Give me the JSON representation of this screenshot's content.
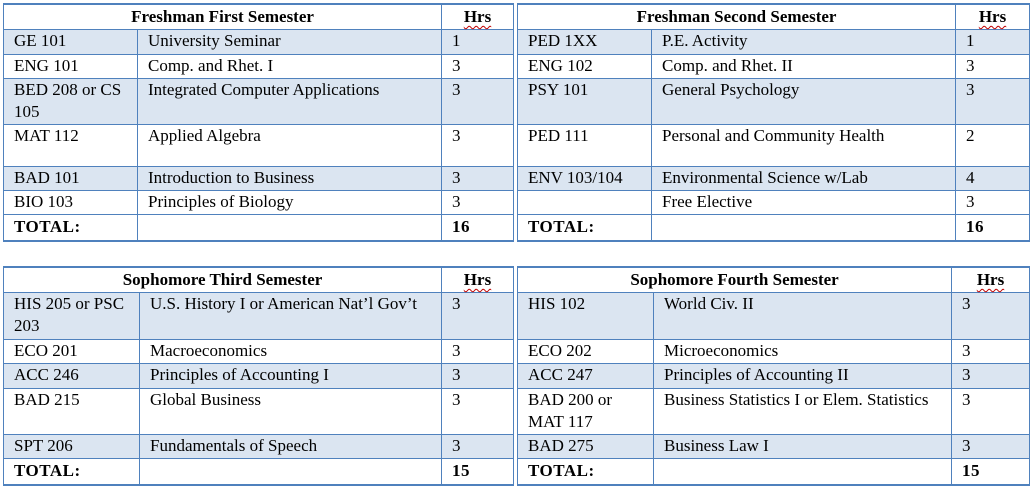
{
  "top": {
    "left": {
      "title": "Freshman First Semester",
      "hrs_label": "Hrs",
      "rows": [
        {
          "code": "GE 101",
          "name": "University Seminar",
          "hrs": "1"
        },
        {
          "code": "ENG 101",
          "name": "Comp. and Rhet. I",
          "hrs": "3"
        },
        {
          "code": "BED 208 or CS 105",
          "name": "Integrated Computer Applications",
          "hrs": "3"
        },
        {
          "code": "MAT 112",
          "name": "Applied Algebra",
          "hrs": "3"
        },
        {
          "code": "BAD 101",
          "name": "Introduction to Business",
          "hrs": "3"
        },
        {
          "code": "BIO 103",
          "name": "Principles of Biology",
          "hrs": "3"
        }
      ],
      "total_label": "TOTAL:",
      "total": "16"
    },
    "right": {
      "title": "Freshman Second Semester",
      "hrs_label": "Hrs",
      "rows": [
        {
          "code": "PED 1XX",
          "name": "P.E. Activity",
          "hrs": "1"
        },
        {
          "code": "ENG 102",
          "name": "Comp. and Rhet. II",
          "hrs": "3"
        },
        {
          "code": "PSY 101",
          "name": "General Psychology",
          "hrs": "3"
        },
        {
          "code": "PED 111",
          "name": "Personal and Community Health",
          "hrs": "2"
        },
        {
          "code": "ENV 103/104",
          "name": "Environmental Science w/Lab",
          "hrs": "4"
        },
        {
          "code": "",
          "name": "Free Elective",
          "hrs": "3"
        }
      ],
      "total_label": "TOTAL:",
      "total": "16"
    }
  },
  "bottom": {
    "left": {
      "title": "Sophomore Third Semester",
      "hrs_label": "Hrs",
      "rows": [
        {
          "code": "HIS 205 or PSC 203",
          "name": "U.S. History I or American Nat’l Gov’t",
          "hrs": "3"
        },
        {
          "code": "ECO 201",
          "name": "Macroeconomics",
          "hrs": "3"
        },
        {
          "code": "ACC 246",
          "name": "Principles of Accounting I",
          "hrs": "3"
        },
        {
          "code": "BAD 215",
          "name": "Global Business",
          "hrs": "3"
        },
        {
          "code": "SPT 206",
          "name": "Fundamentals of Speech",
          "hrs": "3"
        }
      ],
      "total_label": "TOTAL:",
      "total": "15"
    },
    "right": {
      "title": "Sophomore Fourth Semester",
      "hrs_label": "Hrs",
      "rows": [
        {
          "code": "HIS 102",
          "name": "World Civ. II",
          "hrs": "3"
        },
        {
          "code": "ECO 202",
          "name": "Microeconomics",
          "hrs": "3"
        },
        {
          "code": "ACC 247",
          "name": "Principles of Accounting II",
          "hrs": "3"
        },
        {
          "code": "BAD 200 or MAT 117",
          "name": "Business Statistics I or Elem. Statistics",
          "hrs": "3"
        },
        {
          "code": "BAD 275",
          "name": "Business Law I",
          "hrs": "3"
        }
      ],
      "total_label": "TOTAL:",
      "total": "15"
    }
  }
}
